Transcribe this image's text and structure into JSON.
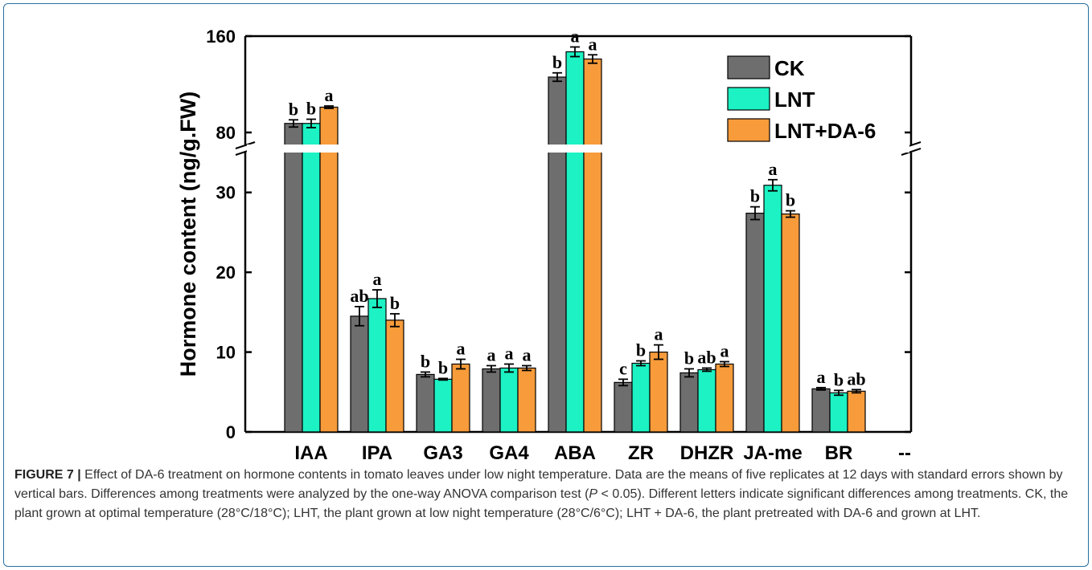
{
  "chart_data": {
    "type": "bar",
    "ylabel": "Hormone content (ng/g.FW)",
    "categories": [
      "IAA",
      "IPA",
      "GA3",
      "GA4",
      "ABA",
      "ZR",
      "DHZR",
      "JA-me",
      "BR",
      "--"
    ],
    "axis": {
      "lower_range": [
        0,
        35
      ],
      "upper_range": [
        70,
        160
      ],
      "lower_ticks": [
        0,
        10,
        20,
        30
      ],
      "upper_ticks": [
        80,
        160
      ],
      "broken_axis": true
    },
    "colors": {
      "CK": "#6e6e6e",
      "LNT": "#1cf2c3",
      "LNT+DA-6": "#f79b3b"
    },
    "series": [
      {
        "name": "CK",
        "values": [
          87.5,
          14.5,
          7.2,
          7.9,
          126,
          6.2,
          7.4,
          27.4,
          5.4,
          null
        ],
        "errors": [
          3,
          1.2,
          0.3,
          0.4,
          3.5,
          0.4,
          0.5,
          0.8,
          0.15,
          null
        ],
        "letters": [
          "b",
          "ab",
          "b",
          "a",
          "b",
          "c",
          "b",
          "b",
          "a",
          ""
        ]
      },
      {
        "name": "LNT",
        "values": [
          87.5,
          16.7,
          6.6,
          8.0,
          147,
          8.6,
          7.8,
          30.9,
          4.9,
          null
        ],
        "errors": [
          3.5,
          1.1,
          0.1,
          0.5,
          4,
          0.3,
          0.2,
          0.7,
          0.3,
          null
        ],
        "letters": [
          "b",
          "a",
          "b",
          "a",
          "a",
          "b",
          "ab",
          "a",
          "b",
          ""
        ]
      },
      {
        "name": "LNT+DA-6",
        "values": [
          101,
          14.0,
          8.5,
          8.0,
          141,
          10.0,
          8.5,
          27.3,
          5.1,
          null
        ],
        "errors": [
          1,
          0.8,
          0.6,
          0.3,
          3.5,
          0.9,
          0.3,
          0.4,
          0.2,
          null
        ],
        "letters": [
          "a",
          "b",
          "a",
          "a",
          "a",
          "a",
          "a",
          "b",
          "ab",
          ""
        ]
      }
    ],
    "legend": [
      "CK",
      "LNT",
      "LNT+DA-6"
    ]
  },
  "caption": {
    "figure_label": "FIGURE 7 |",
    "text_1": " Effect of DA-6 treatment on hormone contents in tomato leaves under low night temperature. Data are the means of five replicates at 12 days with standard errors shown by vertical bars. Differences among treatments were analyzed by the one-way ANOVA comparison test (",
    "p_symbol": "P",
    "text_2": " < 0.05). Different letters indicate significant differences among treatments. CK, the plant grown at optimal temperature (28°C/18°C); LHT, the plant grown at low night temperature (28°C/6°C); LHT + DA-6, the plant pretreated with DA-6 and grown at LHT."
  }
}
